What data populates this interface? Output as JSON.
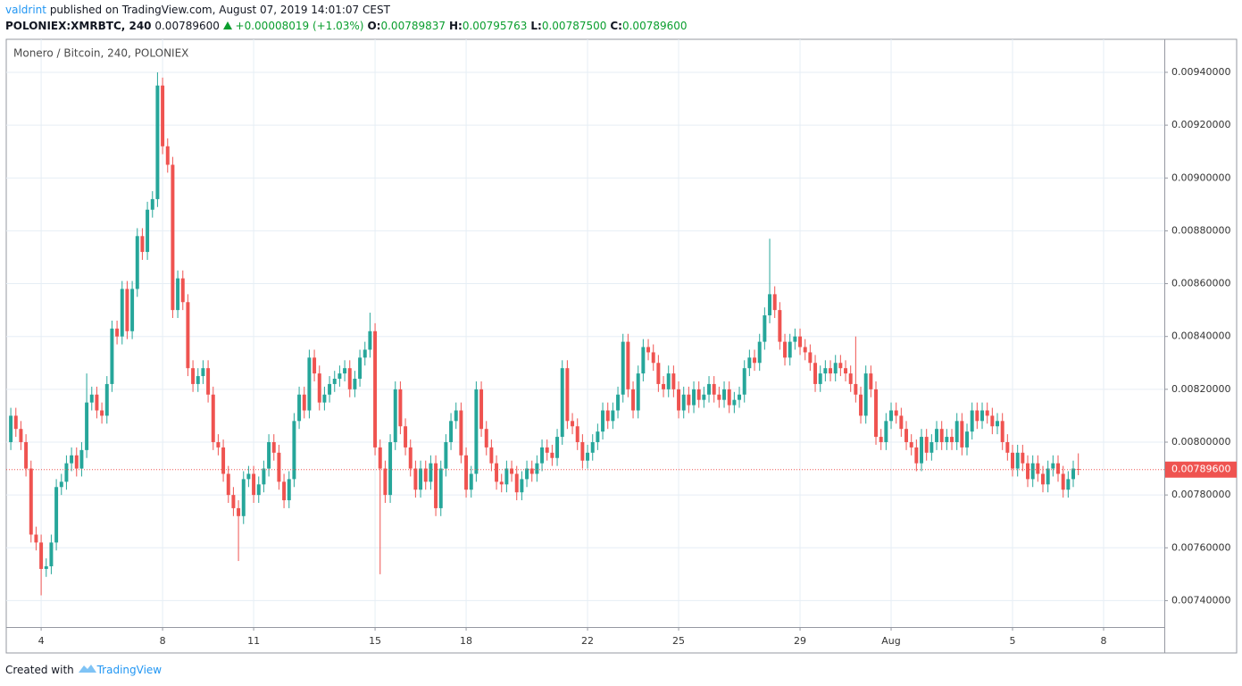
{
  "header": {
    "author": "valdrint",
    "published": "published on TradingView.com, August 07, 2019 14:01:07 CEST",
    "symbol": "POLONIEX:XMRBTC, 240",
    "last": "0.00789600",
    "change": "+0.00008019 (+1.03%)",
    "ohlc": [
      {
        "label": "O:",
        "value": "0.00789837"
      },
      {
        "label": "H:",
        "value": "0.00795763"
      },
      {
        "label": "L:",
        "value": "0.00787500"
      },
      {
        "label": "C:",
        "value": "0.00789600"
      }
    ]
  },
  "footer": {
    "created": "Created with",
    "brand": "TradingView"
  },
  "chart_data": {
    "type": "candlestick",
    "title": "Monero / Bitcoin, 240, POLONIEX",
    "up_color": "#26a69a",
    "down_color": "#ef5350",
    "grid": true,
    "xlim": [
      2.85,
      41
    ],
    "ylim": [
      0.0073,
      0.009525
    ],
    "xticks": [
      4,
      8,
      11,
      15,
      18,
      22,
      25,
      29,
      {
        "value": 32,
        "label": "Aug"
      },
      {
        "value": 36,
        "label": "5"
      },
      {
        "value": 39,
        "label": "8"
      }
    ],
    "yticks": [
      {
        "value": 0.0074,
        "label": "0.00740000"
      },
      {
        "value": 0.0076,
        "label": "0.00760000"
      },
      {
        "value": 0.0078,
        "label": "0.00780000"
      },
      {
        "value": 0.008,
        "label": "0.00800000"
      },
      {
        "value": 0.0082,
        "label": "0.00820000"
      },
      {
        "value": 0.0084,
        "label": "0.00840000"
      },
      {
        "value": 0.0086,
        "label": "0.00860000"
      },
      {
        "value": 0.0088,
        "label": "0.00880000"
      },
      {
        "value": 0.009,
        "label": "0.00900000"
      },
      {
        "value": 0.0092,
        "label": "0.00920000"
      },
      {
        "value": 0.0094,
        "label": "0.00940000"
      }
    ],
    "last_price": {
      "value": 0.007896,
      "label": "0.00789600"
    },
    "x": [
      3,
      3.167,
      3.333,
      3.5,
      3.667,
      3.833,
      4,
      4.167,
      4.333,
      4.5,
      4.667,
      4.833,
      5,
      5.167,
      5.333,
      5.5,
      5.667,
      5.833,
      6,
      6.167,
      6.333,
      6.5,
      6.667,
      6.833,
      7,
      7.167,
      7.333,
      7.5,
      7.667,
      7.833,
      8,
      8.167,
      8.333,
      8.5,
      8.667,
      8.833,
      9,
      9.167,
      9.333,
      9.5,
      9.667,
      9.833,
      10,
      10.167,
      10.333,
      10.5,
      10.667,
      10.833,
      11,
      11.167,
      11.333,
      11.5,
      11.667,
      11.833,
      12,
      12.167,
      12.333,
      12.5,
      12.667,
      12.833,
      13,
      13.167,
      13.333,
      13.5,
      13.667,
      13.833,
      14,
      14.167,
      14.333,
      14.5,
      14.667,
      14.833,
      15,
      15.167,
      15.333,
      15.5,
      15.667,
      15.833,
      16,
      16.167,
      16.333,
      16.5,
      16.667,
      16.833,
      17,
      17.167,
      17.333,
      17.5,
      17.667,
      17.833,
      18,
      18.167,
      18.333,
      18.5,
      18.667,
      18.833,
      19,
      19.167,
      19.333,
      19.5,
      19.667,
      19.833,
      20,
      20.167,
      20.333,
      20.5,
      20.667,
      20.833,
      21,
      21.167,
      21.333,
      21.5,
      21.667,
      21.833,
      22,
      22.167,
      22.333,
      22.5,
      22.667,
      22.833,
      23,
      23.167,
      23.333,
      23.5,
      23.667,
      23.833,
      24,
      24.167,
      24.333,
      24.5,
      24.667,
      24.833,
      25,
      25.167,
      25.333,
      25.5,
      25.667,
      25.833,
      26,
      26.167,
      26.333,
      26.5,
      26.667,
      26.833,
      27,
      27.167,
      27.333,
      27.5,
      27.667,
      27.833,
      28,
      28.167,
      28.333,
      28.5,
      28.667,
      28.833,
      29,
      29.167,
      29.333,
      29.5,
      29.667,
      29.833,
      30,
      30.167,
      30.333,
      30.5,
      30.667,
      30.833,
      31,
      31.167,
      31.333,
      31.5,
      31.667,
      31.833,
      32,
      32.167,
      32.333,
      32.5,
      32.667,
      32.833,
      33,
      33.167,
      33.333,
      33.5,
      33.667,
      33.833,
      34,
      34.167,
      34.333,
      34.5,
      34.667,
      34.833,
      35,
      35.167,
      35.333,
      35.5,
      35.667,
      35.833,
      36,
      36.167,
      36.333,
      36.5,
      36.667,
      36.833,
      37,
      37.167,
      37.333,
      37.5,
      37.667,
      37.833,
      38,
      38.167
    ],
    "open": [
      0.008,
      0.0081,
      0.00805,
      0.008,
      0.0079,
      0.00765,
      0.00762,
      0.00752,
      0.00753,
      0.00762,
      0.00783,
      0.00785,
      0.00792,
      0.00795,
      0.0079,
      0.00797,
      0.00815,
      0.00818,
      0.00812,
      0.0081,
      0.00822,
      0.00843,
      0.0084,
      0.00858,
      0.00842,
      0.00858,
      0.00878,
      0.00872,
      0.00888,
      0.00892,
      0.00935,
      0.00912,
      0.00905,
      0.0085,
      0.00862,
      0.00853,
      0.00828,
      0.00822,
      0.00825,
      0.00828,
      0.00818,
      0.008,
      0.00798,
      0.00788,
      0.0078,
      0.00775,
      0.00772,
      0.00786,
      0.00788,
      0.0078,
      0.00784,
      0.0079,
      0.008,
      0.00796,
      0.00785,
      0.00778,
      0.00786,
      0.00808,
      0.00818,
      0.00812,
      0.00832,
      0.00826,
      0.00815,
      0.00818,
      0.00822,
      0.00824,
      0.00826,
      0.00828,
      0.0082,
      0.00824,
      0.00832,
      0.00835,
      0.00842,
      0.00798,
      0.0079,
      0.0078,
      0.008,
      0.0082,
      0.00806,
      0.00798,
      0.0079,
      0.00782,
      0.0079,
      0.00785,
      0.00792,
      0.00775,
      0.0079,
      0.008,
      0.00808,
      0.00812,
      0.00795,
      0.00782,
      0.00788,
      0.0082,
      0.00805,
      0.00798,
      0.00792,
      0.00785,
      0.00784,
      0.0079,
      0.00788,
      0.00781,
      0.00786,
      0.0079,
      0.00788,
      0.00792,
      0.00798,
      0.00796,
      0.00794,
      0.00802,
      0.00828,
      0.00808,
      0.00806,
      0.008,
      0.00793,
      0.00796,
      0.008,
      0.00804,
      0.00812,
      0.00808,
      0.00812,
      0.00818,
      0.00838,
      0.0082,
      0.00812,
      0.00826,
      0.00836,
      0.00834,
      0.0083,
      0.00822,
      0.0082,
      0.00826,
      0.0082,
      0.00812,
      0.00818,
      0.00814,
      0.0082,
      0.00816,
      0.00818,
      0.00822,
      0.00818,
      0.00816,
      0.0082,
      0.00814,
      0.00816,
      0.00818,
      0.00828,
      0.00832,
      0.0083,
      0.00838,
      0.00848,
      0.00856,
      0.0085,
      0.00838,
      0.00832,
      0.00838,
      0.0084,
      0.00836,
      0.00834,
      0.0083,
      0.00822,
      0.00826,
      0.00828,
      0.00826,
      0.0083,
      0.00828,
      0.00826,
      0.00822,
      0.00818,
      0.0081,
      0.00826,
      0.0082,
      0.00802,
      0.008,
      0.00808,
      0.00812,
      0.0081,
      0.00805,
      0.008,
      0.00798,
      0.00792,
      0.00802,
      0.00796,
      0.008,
      0.00805,
      0.008,
      0.00802,
      0.008,
      0.00808,
      0.00798,
      0.00804,
      0.00812,
      0.00808,
      0.00812,
      0.0081,
      0.00806,
      0.00808,
      0.008,
      0.00796,
      0.0079,
      0.00796,
      0.00792,
      0.00786,
      0.00792,
      0.00788,
      0.00784,
      0.0079,
      0.00792,
      0.00788,
      0.00782,
      0.00786,
      0.00789837
    ],
    "high": [
      0.00813,
      0.00813,
      0.00808,
      0.00803,
      0.00793,
      0.00768,
      0.00765,
      0.00756,
      0.00765,
      0.00786,
      0.00788,
      0.00795,
      0.00798,
      0.00798,
      0.008,
      0.00826,
      0.00821,
      0.00821,
      0.00815,
      0.00825,
      0.00846,
      0.00846,
      0.00861,
      0.00861,
      0.00861,
      0.00881,
      0.00881,
      0.00891,
      0.00895,
      0.0094,
      0.00938,
      0.00915,
      0.00908,
      0.00865,
      0.00865,
      0.00856,
      0.00831,
      0.00828,
      0.00831,
      0.00831,
      0.00821,
      0.00803,
      0.00801,
      0.00791,
      0.00783,
      0.00778,
      0.00789,
      0.00791,
      0.00791,
      0.00787,
      0.00793,
      0.00803,
      0.00803,
      0.00799,
      0.00788,
      0.00789,
      0.00811,
      0.00821,
      0.00821,
      0.00835,
      0.00835,
      0.00829,
      0.00821,
      0.00825,
      0.00827,
      0.00829,
      0.00831,
      0.00831,
      0.00827,
      0.00835,
      0.00838,
      0.00849,
      0.00845,
      0.00801,
      0.00793,
      0.00803,
      0.00823,
      0.00823,
      0.00809,
      0.00801,
      0.00793,
      0.00793,
      0.00793,
      0.00795,
      0.00795,
      0.00793,
      0.00803,
      0.00811,
      0.00815,
      0.00815,
      0.00798,
      0.00791,
      0.00823,
      0.00823,
      0.00808,
      0.00801,
      0.00795,
      0.00788,
      0.00793,
      0.00793,
      0.00791,
      0.00789,
      0.00793,
      0.00793,
      0.00795,
      0.00801,
      0.00801,
      0.00799,
      0.00805,
      0.00831,
      0.00831,
      0.00811,
      0.00809,
      0.00803,
      0.00799,
      0.00803,
      0.00807,
      0.00815,
      0.00815,
      0.00815,
      0.00821,
      0.00841,
      0.00841,
      0.00823,
      0.00829,
      0.00839,
      0.00839,
      0.00837,
      0.00833,
      0.00825,
      0.00829,
      0.00829,
      0.00823,
      0.00821,
      0.00821,
      0.00823,
      0.00823,
      0.00821,
      0.00825,
      0.00825,
      0.00821,
      0.00823,
      0.00823,
      0.00819,
      0.00821,
      0.00831,
      0.00835,
      0.00835,
      0.00841,
      0.00851,
      0.00877,
      0.00859,
      0.00853,
      0.00841,
      0.00841,
      0.00843,
      0.00843,
      0.00839,
      0.00837,
      0.00833,
      0.00829,
      0.00831,
      0.00831,
      0.00833,
      0.00833,
      0.00831,
      0.00829,
      0.0084,
      0.00821,
      0.00829,
      0.00829,
      0.00823,
      0.00805,
      0.00811,
      0.00815,
      0.00815,
      0.00813,
      0.00808,
      0.00803,
      0.00801,
      0.00805,
      0.00805,
      0.00803,
      0.00808,
      0.00808,
      0.00805,
      0.00805,
      0.00811,
      0.00811,
      0.00807,
      0.00815,
      0.00815,
      0.00815,
      0.00815,
      0.00813,
      0.00811,
      0.00811,
      0.00803,
      0.00799,
      0.00799,
      0.00799,
      0.00795,
      0.00795,
      0.00795,
      0.00791,
      0.00793,
      0.00795,
      0.00795,
      0.00791,
      0.00789,
      0.00793,
      0.00795763
    ],
    "low": [
      0.00797,
      0.00802,
      0.00797,
      0.00787,
      0.00762,
      0.00759,
      0.00742,
      0.00749,
      0.0075,
      0.00759,
      0.0078,
      0.00782,
      0.00789,
      0.00787,
      0.00787,
      0.00794,
      0.00812,
      0.00809,
      0.00807,
      0.00807,
      0.00819,
      0.00837,
      0.00837,
      0.00839,
      0.00839,
      0.00855,
      0.00869,
      0.00869,
      0.00885,
      0.00889,
      0.00909,
      0.00902,
      0.00847,
      0.00847,
      0.0085,
      0.00825,
      0.00819,
      0.00819,
      0.00822,
      0.00815,
      0.00797,
      0.00795,
      0.00785,
      0.00777,
      0.00772,
      0.00755,
      0.00769,
      0.00783,
      0.00777,
      0.00777,
      0.00781,
      0.00787,
      0.00793,
      0.00782,
      0.00775,
      0.00775,
      0.00783,
      0.00805,
      0.00809,
      0.00809,
      0.00823,
      0.00812,
      0.00812,
      0.00815,
      0.00819,
      0.00821,
      0.00823,
      0.00817,
      0.00817,
      0.00821,
      0.00829,
      0.00832,
      0.00795,
      0.0075,
      0.00777,
      0.00777,
      0.00797,
      0.00803,
      0.00795,
      0.00787,
      0.00779,
      0.00779,
      0.00782,
      0.00782,
      0.00772,
      0.00772,
      0.00787,
      0.00797,
      0.00805,
      0.00792,
      0.00779,
      0.00779,
      0.00785,
      0.00802,
      0.00795,
      0.00789,
      0.00782,
      0.00781,
      0.00781,
      0.00785,
      0.00778,
      0.00778,
      0.00783,
      0.00785,
      0.00785,
      0.00789,
      0.00793,
      0.00791,
      0.00791,
      0.00799,
      0.00805,
      0.00803,
      0.00797,
      0.0079,
      0.0079,
      0.00793,
      0.00797,
      0.00801,
      0.00805,
      0.00805,
      0.00809,
      0.00815,
      0.00817,
      0.00809,
      0.00809,
      0.00823,
      0.00831,
      0.00827,
      0.00819,
      0.00817,
      0.00817,
      0.00817,
      0.00809,
      0.00809,
      0.00811,
      0.00811,
      0.00813,
      0.00813,
      0.00815,
      0.00815,
      0.00813,
      0.00813,
      0.00811,
      0.00811,
      0.00813,
      0.00815,
      0.00825,
      0.00827,
      0.00827,
      0.00835,
      0.00845,
      0.00847,
      0.00835,
      0.00829,
      0.00829,
      0.00835,
      0.00833,
      0.00831,
      0.00827,
      0.00819,
      0.00819,
      0.00823,
      0.00823,
      0.00823,
      0.00825,
      0.00823,
      0.00819,
      0.00815,
      0.00807,
      0.00807,
      0.00817,
      0.00799,
      0.00797,
      0.00797,
      0.00805,
      0.00807,
      0.00802,
      0.00797,
      0.00795,
      0.00789,
      0.00789,
      0.00793,
      0.00793,
      0.00797,
      0.00797,
      0.00797,
      0.00797,
      0.00797,
      0.00795,
      0.00795,
      0.00801,
      0.00805,
      0.00805,
      0.00807,
      0.00803,
      0.00803,
      0.00797,
      0.00793,
      0.00787,
      0.00787,
      0.00789,
      0.00783,
      0.00783,
      0.00785,
      0.00781,
      0.00781,
      0.00787,
      0.00785,
      0.00779,
      0.00779,
      0.00783,
      0.007875
    ],
    "close": [
      0.0081,
      0.00805,
      0.008,
      0.0079,
      0.00765,
      0.00762,
      0.00752,
      0.00753,
      0.00762,
      0.00783,
      0.00785,
      0.00792,
      0.00795,
      0.0079,
      0.00797,
      0.00815,
      0.00818,
      0.00812,
      0.0081,
      0.00822,
      0.00843,
      0.0084,
      0.00858,
      0.00842,
      0.00858,
      0.00878,
      0.00872,
      0.00888,
      0.00892,
      0.00935,
      0.00912,
      0.00905,
      0.0085,
      0.00862,
      0.00853,
      0.00828,
      0.00822,
      0.00825,
      0.00828,
      0.00818,
      0.008,
      0.00798,
      0.00788,
      0.0078,
      0.00775,
      0.00772,
      0.00786,
      0.00788,
      0.0078,
      0.00784,
      0.0079,
      0.008,
      0.00796,
      0.00785,
      0.00778,
      0.00786,
      0.00808,
      0.00818,
      0.00812,
      0.00832,
      0.00826,
      0.00815,
      0.00818,
      0.00822,
      0.00824,
      0.00826,
      0.00828,
      0.0082,
      0.00824,
      0.00832,
      0.00835,
      0.00842,
      0.00798,
      0.0079,
      0.0078,
      0.008,
      0.0082,
      0.00806,
      0.00798,
      0.0079,
      0.00782,
      0.0079,
      0.00785,
      0.00792,
      0.00775,
      0.0079,
      0.008,
      0.00808,
      0.00812,
      0.00795,
      0.00782,
      0.00788,
      0.0082,
      0.00805,
      0.00798,
      0.00792,
      0.00785,
      0.00784,
      0.0079,
      0.00788,
      0.00781,
      0.00786,
      0.0079,
      0.00788,
      0.00792,
      0.00798,
      0.00796,
      0.00794,
      0.00802,
      0.00828,
      0.00808,
      0.00806,
      0.008,
      0.00793,
      0.00796,
      0.008,
      0.00804,
      0.00812,
      0.00808,
      0.00812,
      0.00818,
      0.00838,
      0.0082,
      0.00812,
      0.00826,
      0.00836,
      0.00834,
      0.0083,
      0.00822,
      0.0082,
      0.00826,
      0.0082,
      0.00812,
      0.00818,
      0.00814,
      0.0082,
      0.00816,
      0.00818,
      0.00822,
      0.00818,
      0.00816,
      0.0082,
      0.00814,
      0.00816,
      0.00818,
      0.00828,
      0.00832,
      0.0083,
      0.00838,
      0.00848,
      0.00856,
      0.0085,
      0.00838,
      0.00832,
      0.00838,
      0.0084,
      0.00836,
      0.00834,
      0.0083,
      0.00822,
      0.00826,
      0.00828,
      0.00826,
      0.0083,
      0.00828,
      0.00826,
      0.00822,
      0.00818,
      0.0081,
      0.00826,
      0.0082,
      0.00802,
      0.008,
      0.00808,
      0.00812,
      0.0081,
      0.00805,
      0.008,
      0.00798,
      0.00792,
      0.00802,
      0.00796,
      0.008,
      0.00805,
      0.008,
      0.00802,
      0.008,
      0.00808,
      0.00798,
      0.00804,
      0.00812,
      0.00808,
      0.00812,
      0.0081,
      0.00806,
      0.00808,
      0.008,
      0.00796,
      0.0079,
      0.00796,
      0.00792,
      0.00786,
      0.00792,
      0.00788,
      0.00784,
      0.0079,
      0.00792,
      0.00788,
      0.00782,
      0.00786,
      0.0079,
      0.007896
    ]
  }
}
